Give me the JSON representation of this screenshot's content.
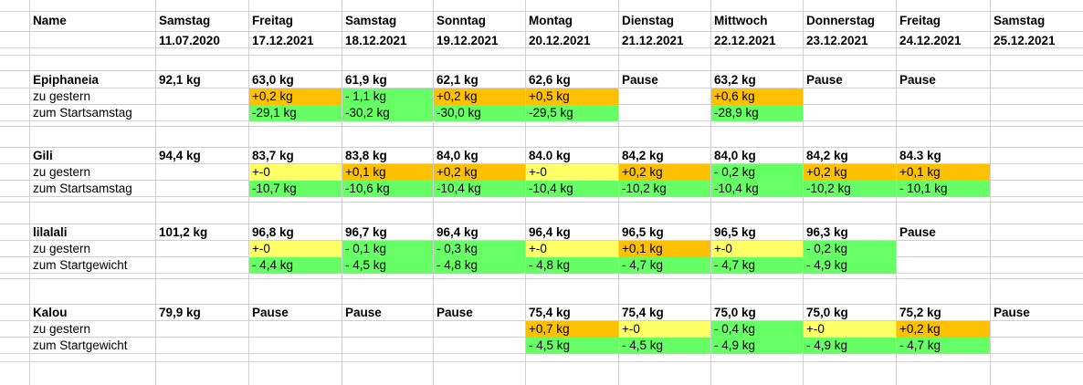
{
  "colors": {
    "green": "#66ff66",
    "orange": "#ffc000",
    "yellow": "#ffff66",
    "grid": "#d0d0d0"
  },
  "header": {
    "name": "Name",
    "days": [
      {
        "day": "Samstag",
        "date": "11.07.2020"
      },
      {
        "day": "Freitag",
        "date": "17.12.2021"
      },
      {
        "day": "Samstag",
        "date": "18.12.2021"
      },
      {
        "day": "Sonntag",
        "date": "19.12.2021"
      },
      {
        "day": "Montag",
        "date": "20.12.2021"
      },
      {
        "day": "Dienstag",
        "date": "21.12.2021"
      },
      {
        "day": "Mittwoch",
        "date": "22.12.2021"
      },
      {
        "day": "Donnerstag",
        "date": "23.12.2021"
      },
      {
        "day": "Freitag",
        "date": "24.12.2021"
      },
      {
        "day": "Samstag",
        "date": "25.12.2021"
      }
    ]
  },
  "people": [
    {
      "name": "Epiphaneia",
      "weights": [
        "92,1 kg",
        "63,0 kg",
        "61,9 kg",
        "62,1 kg",
        "62,6 kg",
        "Pause",
        "63,2 kg",
        "Pause",
        "Pause",
        ""
      ],
      "delta_label": "zu gestern",
      "deltas": [
        "",
        "+0,2 kg",
        "- 1,1  kg",
        "+0,2 kg",
        "+0,5 kg",
        "",
        "+0,6 kg",
        "",
        "",
        ""
      ],
      "delta_status": [
        "",
        "orange",
        "green",
        "orange",
        "orange",
        "",
        "orange",
        "",
        "",
        ""
      ],
      "total_label": "zum Startsamstag",
      "totals": [
        "",
        "-29,1 kg",
        "-30,2 kg",
        "-30,0 kg",
        "-29,5 kg",
        "",
        "-28,9 kg",
        "",
        "",
        ""
      ],
      "total_status": [
        "",
        "green",
        "green",
        "green",
        "green",
        "",
        "green",
        "",
        "",
        ""
      ]
    },
    {
      "name": "Gili",
      "weights": [
        "94,4 kg",
        "83,7 kg",
        "83,8 kg",
        "84,0 kg",
        "84.0 kg",
        "84,2 kg",
        "84,0 kg",
        "84,2 kg",
        "84.3 kg",
        ""
      ],
      "delta_label": "zu gestern",
      "deltas": [
        "",
        "+-0",
        "+0,1 kg",
        "+0,2 kg",
        "+-0",
        "+0,2 kg",
        "- 0,2 kg",
        "+0,2 kg",
        "+0,1 kg",
        ""
      ],
      "delta_status": [
        "",
        "yellow",
        "orange",
        "orange",
        "yellow",
        "orange",
        "green",
        "orange",
        "orange",
        ""
      ],
      "total_label": "zum Startsamstag",
      "totals": [
        "",
        "-10,7 kg",
        "-10,6 kg",
        "-10,4 kg",
        "-10,4 kg",
        "-10,2 kg",
        "-10,4 kg",
        "-10,2 kg",
        "- 10,1 kg",
        ""
      ],
      "total_status": [
        "",
        "green",
        "green",
        "green",
        "green",
        "green",
        "green",
        "green",
        "green",
        ""
      ]
    },
    {
      "name": "lilalali",
      "weights": [
        "101,2 kg",
        "96,8 kg",
        "96,7 kg",
        "96,4 kg",
        "96,4 kg",
        "96,5 kg",
        "96,5 kg",
        "96,3 kg",
        "Pause",
        ""
      ],
      "delta_label": "zu gestern",
      "deltas": [
        "",
        "+-0",
        "- 0,1 kg",
        "- 0,3 kg",
        "+-0",
        "+0,1 kg",
        "+-0",
        "- 0,2 kg",
        "",
        ""
      ],
      "delta_status": [
        "",
        "yellow",
        "green",
        "green",
        "yellow",
        "orange",
        "yellow",
        "green",
        "",
        ""
      ],
      "total_label": "zum Startgewicht",
      "totals": [
        "",
        "- 4,4 kg",
        "- 4,5 kg",
        "- 4,8 kg",
        "- 4,8 kg",
        "- 4,7 kg",
        "- 4,7 kg",
        "- 4,9 kg",
        "",
        ""
      ],
      "total_status": [
        "",
        "green",
        "green",
        "green",
        "green",
        "green",
        "green",
        "green",
        "",
        ""
      ]
    },
    {
      "name": "Kalou",
      "weights": [
        "79,9 kg",
        "Pause",
        "Pause",
        "Pause",
        "75,4 kg",
        "75,4 kg",
        "75,0 kg",
        "75,0 kg",
        "75,2 kg",
        "Pause"
      ],
      "delta_label": "zu gestern",
      "deltas": [
        "",
        "",
        "",
        "",
        "+0,7 kg",
        "+-0",
        "- 0,4 kg",
        "+-0",
        "+0,2 kg",
        ""
      ],
      "delta_status": [
        "",
        "",
        "",
        "",
        "orange",
        "yellow",
        "green",
        "yellow",
        "orange",
        ""
      ],
      "total_label": "zum Startgewicht",
      "totals": [
        "",
        "",
        "",
        "",
        "- 4,5 kg",
        "- 4,5 kg",
        "- 4,9 kg",
        "- 4,9 kg",
        "- 4,7 kg",
        ""
      ],
      "total_status": [
        "",
        "",
        "",
        "",
        "green",
        "green",
        "green",
        "green",
        "green",
        ""
      ]
    }
  ]
}
